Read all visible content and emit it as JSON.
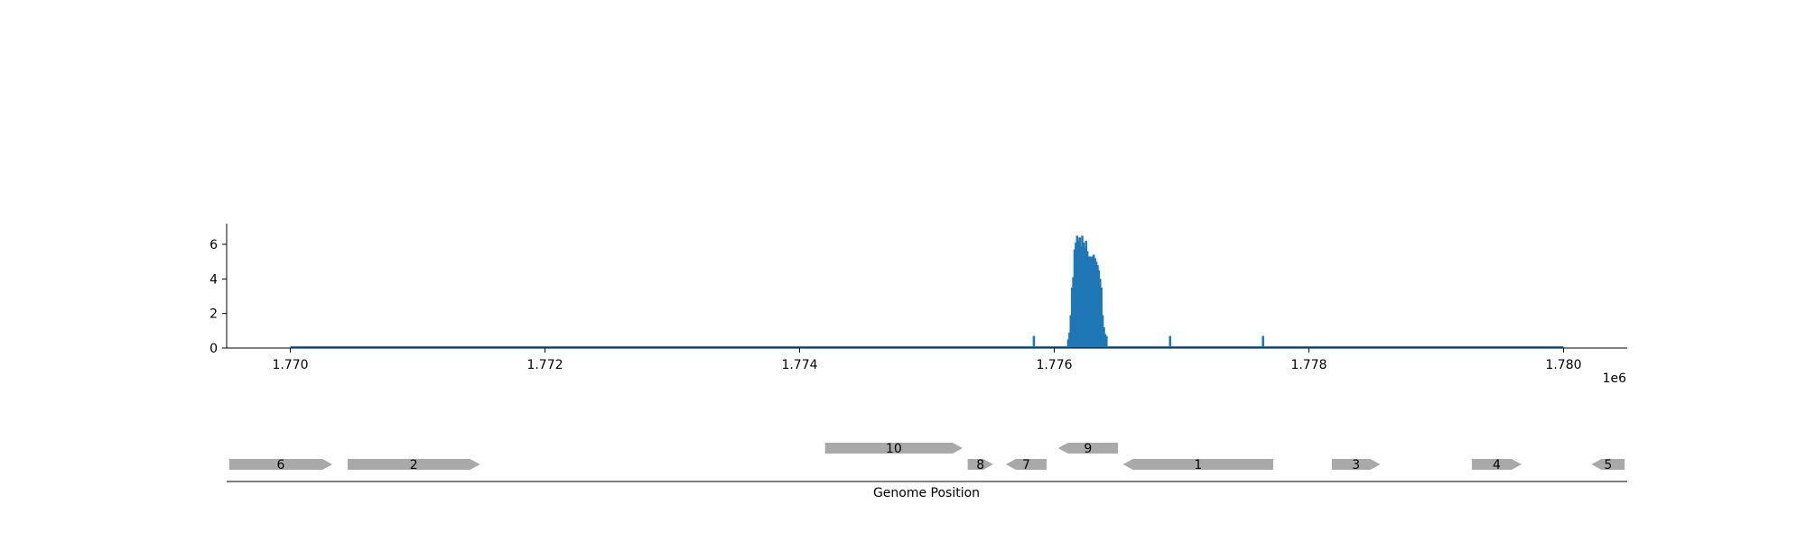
{
  "chart_data": [
    {
      "type": "bar",
      "xlabel": "",
      "ylabel": "",
      "x_offset_label": "1e6",
      "xlim": [
        1769500,
        1780500
      ],
      "ylim": [
        0,
        7.2
      ],
      "x_ticks": [
        1770000,
        1772000,
        1774000,
        1776000,
        1778000,
        1780000
      ],
      "x_tick_labels": [
        "1.770",
        "1.772",
        "1.774",
        "1.776",
        "1.778",
        "1.780"
      ],
      "y_ticks": [
        0,
        2,
        4,
        6
      ],
      "y_tick_labels": [
        "0",
        "2",
        "4",
        "6"
      ],
      "color": "#1f77b4",
      "baseline_range": [
        1770000,
        1780000
      ],
      "baseline_value": 0.05,
      "positions": [
        1775840,
        1776110,
        1776120,
        1776130,
        1776140,
        1776150,
        1776160,
        1776170,
        1776180,
        1776190,
        1776200,
        1776210,
        1776220,
        1776230,
        1776240,
        1776250,
        1776260,
        1776270,
        1776280,
        1776290,
        1776300,
        1776310,
        1776320,
        1776330,
        1776340,
        1776350,
        1776360,
        1776370,
        1776380,
        1776390,
        1776400,
        1776410,
        1776910,
        1777640
      ],
      "values": [
        0.7,
        0.5,
        0.9,
        1.9,
        3.5,
        4.1,
        5.7,
        6.1,
        6.5,
        6.2,
        6.4,
        5.9,
        6.5,
        6.1,
        5.8,
        6.2,
        5.6,
        5.3,
        5.3,
        5.2,
        5.3,
        5.4,
        5.2,
        5.0,
        4.8,
        4.5,
        4.0,
        3.5,
        1.9,
        1.2,
        0.8,
        0.7,
        0.7,
        0.7
      ]
    },
    {
      "type": "gene-track",
      "xlabel": "Genome Position",
      "genes": [
        {
          "label": "6",
          "start": 1769520,
          "end": 1770330,
          "strand": "+",
          "row": 0
        },
        {
          "label": "2",
          "start": 1770450,
          "end": 1771490,
          "strand": "+",
          "row": 0
        },
        {
          "label": "10",
          "start": 1774200,
          "end": 1775280,
          "strand": "+",
          "row": 1
        },
        {
          "label": "8",
          "start": 1775320,
          "end": 1775520,
          "strand": "+",
          "row": 0
        },
        {
          "label": "7",
          "start": 1775620,
          "end": 1775940,
          "strand": "-",
          "row": 0
        },
        {
          "label": "9",
          "start": 1776030,
          "end": 1776500,
          "strand": "-",
          "row": 1
        },
        {
          "label": "1",
          "start": 1776540,
          "end": 1777720,
          "strand": "-",
          "row": 0
        },
        {
          "label": "3",
          "start": 1778180,
          "end": 1778560,
          "strand": "+",
          "row": 0
        },
        {
          "label": "4",
          "start": 1779280,
          "end": 1779670,
          "strand": "+",
          "row": 0
        },
        {
          "label": "5",
          "start": 1780220,
          "end": 1780480,
          "strand": "-",
          "row": 0
        }
      ],
      "color": "#a9a9a9"
    }
  ]
}
